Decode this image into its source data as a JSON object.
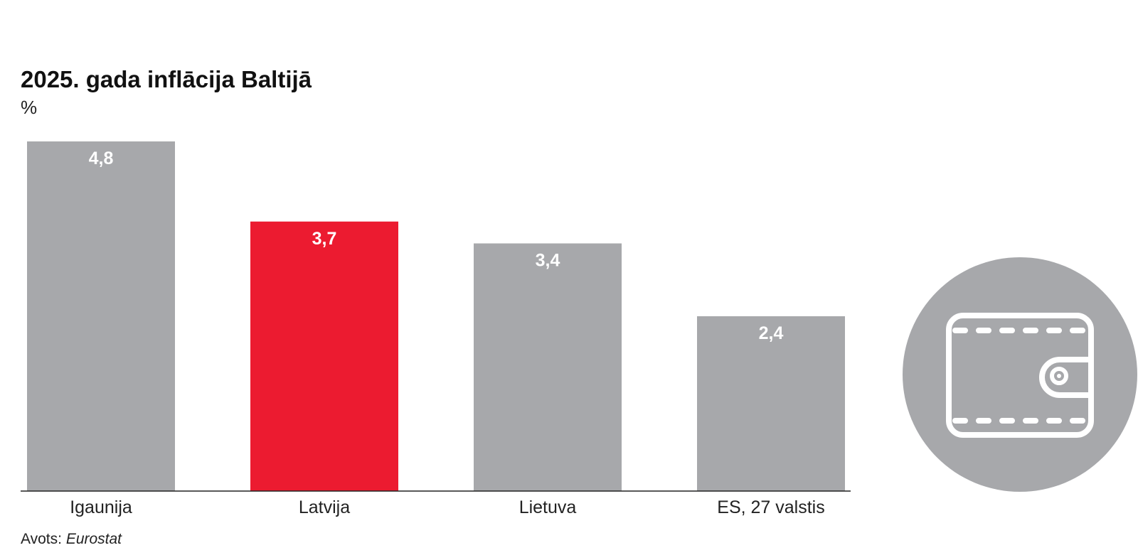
{
  "chart_data": {
    "type": "bar",
    "title": "2025. gada inflācija Baltijā",
    "ylabel": "%",
    "xlabel": "",
    "categories": [
      "Igaunija",
      "Latvija",
      "Lietuva",
      "ES, 27 valstis"
    ],
    "values": [
      4.8,
      3.7,
      3.4,
      2.4
    ],
    "value_labels": [
      "4,8",
      "3,7",
      "3,4",
      "2,4"
    ],
    "highlight_index": 1,
    "ylim": [
      0,
      4.8
    ],
    "grid": false,
    "colors": {
      "default": "#a7a8ab",
      "highlight": "#ec1b30"
    }
  },
  "source": {
    "prefix": "Avots: ",
    "name": "Eurostat"
  },
  "decoration": {
    "icon": "wallet-icon",
    "circle_color": "#a7a8ab",
    "icon_color": "#ffffff"
  }
}
